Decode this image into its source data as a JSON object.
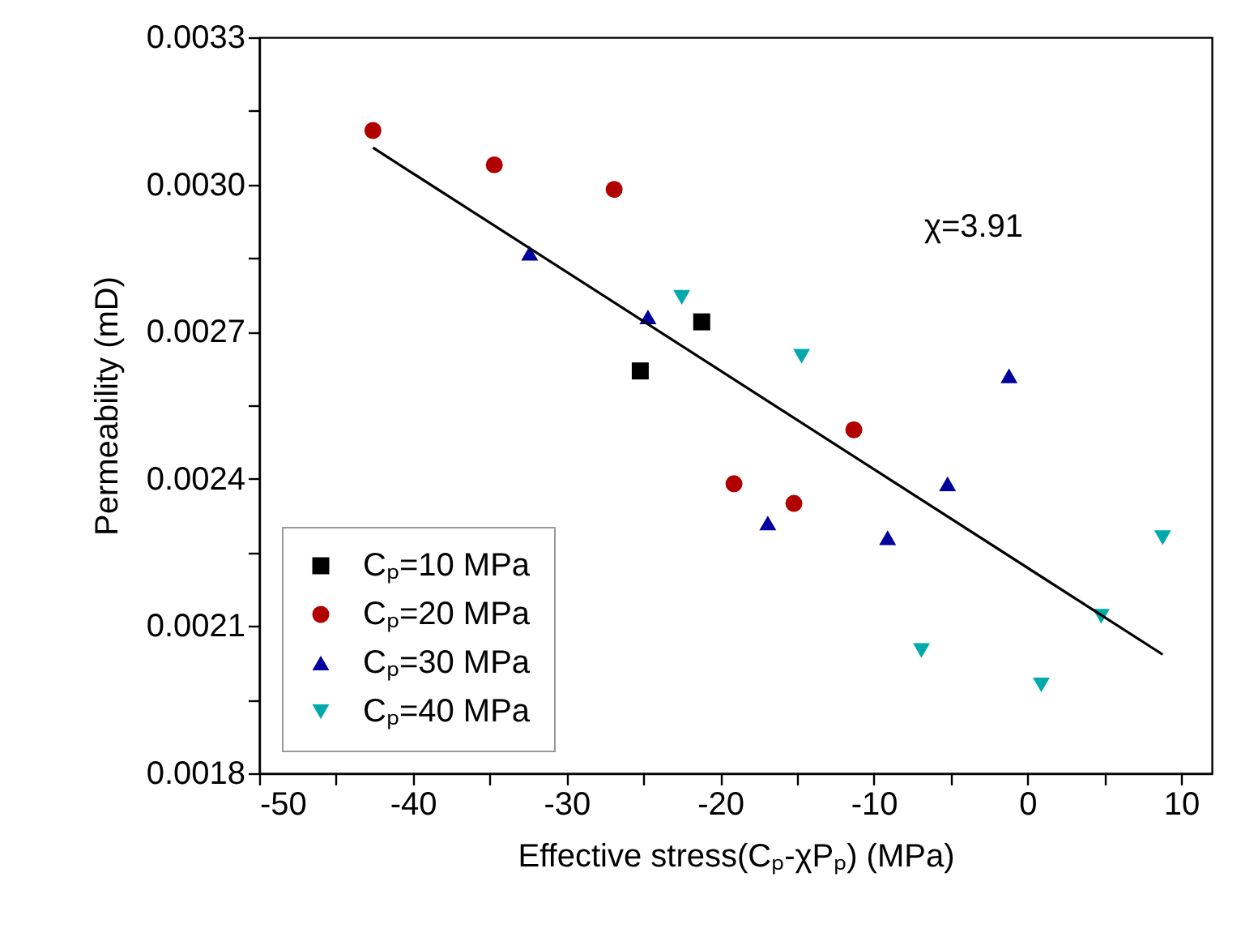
{
  "chart_data": {
    "type": "scatter",
    "xlabel": "Effective stress(Cₚ-χPₚ) (MPa)",
    "ylabel": "Permeability (mD)",
    "annotations": [
      "χ=3.91"
    ],
    "xlim": [
      -50,
      12
    ],
    "xticks": [
      -50,
      {
        "value": -45,
        "label": null
      },
      -40,
      {
        "value": -35,
        "label": null
      },
      -30,
      {
        "value": -25,
        "label": null
      },
      -20,
      {
        "value": -15,
        "label": null
      },
      -10,
      {
        "value": -5,
        "label": null
      },
      0,
      {
        "value": 5,
        "label": null
      },
      10
    ],
    "ylim": [
      0.0018,
      0.0033
    ],
    "yticks": [
      0.0018,
      {
        "value": 0.00195,
        "label": null
      },
      0.0021,
      {
        "value": 0.00225,
        "label": null
      },
      0.0024,
      {
        "value": 0.00255,
        "label": null
      },
      0.0027,
      {
        "value": 0.00285,
        "label": null
      },
      {
        "value": 0.003,
        "label": "0.0030"
      },
      {
        "value": 0.00315,
        "label": null
      },
      0.0033
    ],
    "grid": false,
    "legend": "bottom left",
    "series": [
      {
        "name": "Cₚ=10 MPa",
        "color": "#000000",
        "marker": "square",
        "x": [
          -25.2,
          -21.2
        ],
        "values": [
          0.00262,
          0.00272
        ]
      },
      {
        "name": "Cₚ=20 MPa",
        "color": "#b00000",
        "marker": "circle",
        "x": [
          -42.6,
          -34.7,
          -26.9,
          -11.3,
          -19.1,
          -15.2
        ],
        "values": [
          0.00311,
          0.00304,
          0.00299,
          0.0025,
          0.00239,
          0.00235
        ]
      },
      {
        "name": "Cₚ=30 MPa",
        "color": "#0000a0",
        "marker": "triangle",
        "x": [
          -32.4,
          -24.7,
          -1.2,
          -5.2,
          -16.9,
          -9.1
        ],
        "values": [
          0.00286,
          0.00273,
          0.00261,
          0.00239,
          0.00231,
          0.00228
        ]
      },
      {
        "name": "Cₚ=40 MPa",
        "color": "#00aaaa",
        "marker": "triangle-down",
        "x": [
          -22.5,
          -14.7,
          8.8,
          4.8,
          -6.9,
          0.9
        ],
        "values": [
          0.00277,
          0.00265,
          0.00228,
          0.00212,
          0.00205,
          0.00198
        ]
      },
      {
        "type": "line",
        "color": "#000000",
        "marker": "none",
        "line_style": "solid",
        "x": [
          -42.6,
          8.8
        ],
        "values": [
          0.003075,
          0.002042
        ]
      }
    ]
  }
}
